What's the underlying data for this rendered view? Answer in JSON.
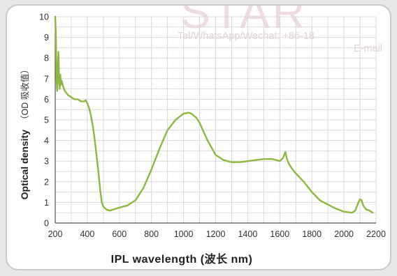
{
  "chart_data": {
    "type": "line",
    "title": "",
    "xlabel": "IPL wavelength (波长 nm)",
    "ylabel": "Optical density",
    "ylabel_cn": "（OD 吸收值）",
    "xlim": [
      200,
      2200
    ],
    "ylim": [
      0,
      10
    ],
    "x_ticks": [
      200,
      400,
      600,
      800,
      1000,
      1200,
      1400,
      1600,
      1800,
      2000,
      2200
    ],
    "y_ticks": [
      0,
      1,
      2,
      3,
      4,
      5,
      6,
      7,
      8,
      9,
      10
    ],
    "grid": true,
    "colors": {
      "line": "#8db83e",
      "grid": "#d9d9d9",
      "axis": "#555555"
    },
    "series": [
      {
        "name": "",
        "x": [
          200,
          204,
          208,
          212,
          216,
          220,
          224,
          228,
          232,
          236,
          240,
          250,
          260,
          280,
          300,
          320,
          340,
          360,
          380,
          390,
          400,
          410,
          420,
          430,
          440,
          450,
          460,
          470,
          480,
          490,
          500,
          510,
          520,
          540,
          560,
          600,
          650,
          700,
          750,
          800,
          850,
          900,
          950,
          1000,
          1030,
          1050,
          1080,
          1100,
          1150,
          1200,
          1250,
          1300,
          1350,
          1400,
          1450,
          1500,
          1550,
          1580,
          1600,
          1620,
          1635,
          1645,
          1655,
          1670,
          1700,
          1750,
          1800,
          1850,
          1900,
          1950,
          2000,
          2050,
          2070,
          2090,
          2100,
          2110,
          2120,
          2140,
          2160,
          2180
        ],
        "y": [
          10.0,
          9.2,
          7.0,
          6.4,
          7.6,
          8.3,
          6.9,
          6.5,
          7.2,
          6.7,
          6.9,
          6.6,
          6.4,
          6.2,
          6.1,
          6.0,
          6.0,
          5.9,
          5.9,
          5.95,
          5.8,
          5.6,
          5.3,
          4.9,
          4.4,
          3.8,
          3.1,
          2.4,
          1.6,
          1.0,
          0.8,
          0.72,
          0.65,
          0.6,
          0.65,
          0.75,
          0.85,
          1.1,
          1.7,
          2.6,
          3.6,
          4.5,
          5.0,
          5.3,
          5.35,
          5.3,
          5.1,
          4.85,
          4.0,
          3.3,
          3.05,
          2.95,
          2.95,
          3.0,
          3.05,
          3.1,
          3.1,
          3.05,
          3.0,
          3.15,
          3.45,
          3.1,
          2.9,
          2.7,
          2.4,
          2.0,
          1.5,
          1.1,
          0.9,
          0.7,
          0.55,
          0.5,
          0.6,
          1.0,
          1.15,
          1.1,
          0.85,
          0.65,
          0.6,
          0.5
        ]
      }
    ]
  },
  "watermark": {
    "brand": "STAR",
    "contact": "Tel/WhatsApp/Wechat: +86-18",
    "email": "E-mail"
  }
}
